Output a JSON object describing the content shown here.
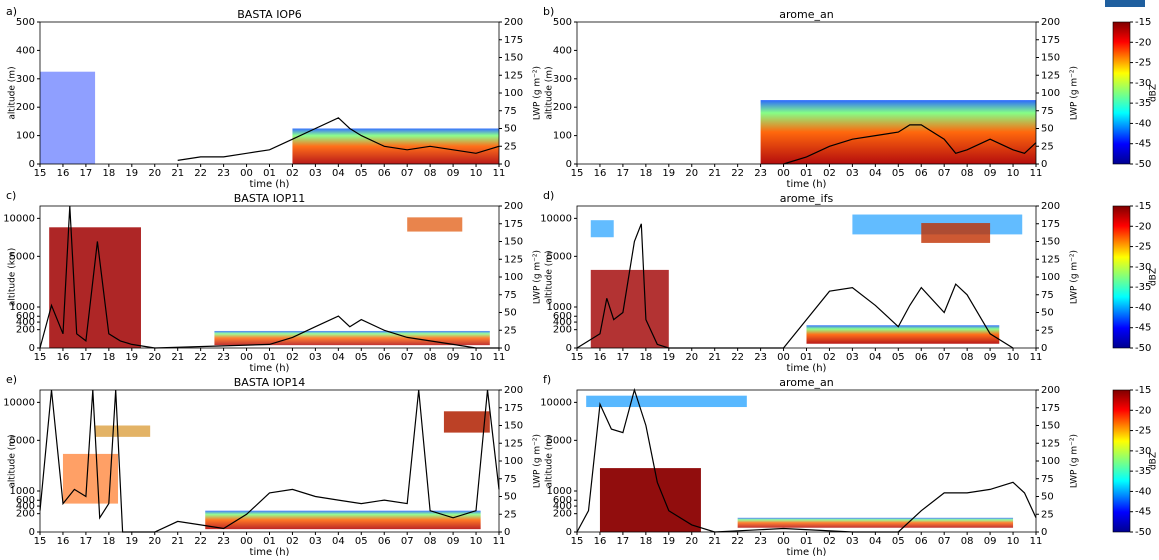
{
  "chart_data": [
    {
      "type": "line",
      "panel_label": "a)",
      "title": "BASTA IOP6",
      "xlabel": "time (h)",
      "ylabel": "altitude (m)",
      "y2label": "LWP (g m⁻²)",
      "yscale": "linear",
      "xlim": [
        15,
        35
      ],
      "xticks": [
        15,
        16,
        17,
        18,
        19,
        20,
        21,
        22,
        23,
        {
          "value": 24,
          "label": "00"
        },
        {
          "value": 25,
          "label": "01"
        },
        {
          "value": 26,
          "label": "02"
        },
        {
          "value": 27,
          "label": "03"
        },
        {
          "value": 28,
          "label": "04"
        },
        {
          "value": 29,
          "label": "05"
        },
        {
          "value": 30,
          "label": "06"
        },
        {
          "value": 31,
          "label": "07"
        },
        {
          "value": 32,
          "label": "08"
        },
        {
          "value": 33,
          "label": "09"
        },
        {
          "value": 34,
          "label": "10"
        },
        {
          "value": 35,
          "label": "11"
        }
      ],
      "ylim": [
        0,
        500
      ],
      "yticks": [
        0,
        100,
        200,
        300,
        400,
        500
      ],
      "y2lim": [
        0,
        200
      ],
      "y2ticks": [
        0,
        25,
        50,
        75,
        100,
        125,
        150,
        175,
        200
      ],
      "x": [
        21,
        22,
        23,
        24,
        25,
        26,
        27,
        28,
        28.5,
        29,
        30,
        31,
        32,
        33,
        34,
        35
      ],
      "series": [
        {
          "color": "#000000",
          "axis": "y2",
          "values": [
            5,
            10,
            10,
            15,
            20,
            35,
            50,
            65,
            50,
            40,
            25,
            20,
            25,
            20,
            15,
            25
          ]
        }
      ]
    },
    {
      "type": "line",
      "panel_label": "b)",
      "title": "arome_an",
      "xlabel": "time (h)",
      "ylabel": "altitude (m)",
      "y2label": "LWP (g m⁻²)",
      "yscale": "linear",
      "xlim": [
        15,
        35
      ],
      "xticks": [
        15,
        16,
        17,
        18,
        19,
        20,
        21,
        22,
        23,
        {
          "value": 24,
          "label": "00"
        },
        {
          "value": 25,
          "label": "01"
        },
        {
          "value": 26,
          "label": "02"
        },
        {
          "value": 27,
          "label": "03"
        },
        {
          "value": 28,
          "label": "04"
        },
        {
          "value": 29,
          "label": "05"
        },
        {
          "value": 30,
          "label": "06"
        },
        {
          "value": 31,
          "label": "07"
        },
        {
          "value": 32,
          "label": "08"
        },
        {
          "value": 33,
          "label": "09"
        },
        {
          "value": 34,
          "label": "10"
        },
        {
          "value": 35,
          "label": "11"
        }
      ],
      "ylim": [
        0,
        500
      ],
      "yticks": [
        0,
        100,
        200,
        300,
        400,
        500
      ],
      "y2lim": [
        0,
        200
      ],
      "y2ticks": [
        0,
        25,
        50,
        75,
        100,
        125,
        150,
        175,
        200
      ],
      "colorbar": {
        "label": "dBZ",
        "lim": [
          -50,
          -15
        ],
        "ticks": [
          -15,
          -20,
          -25,
          -30,
          -35,
          -40,
          -45,
          -50
        ]
      },
      "x": [
        24,
        25,
        26,
        27,
        28,
        29,
        29.5,
        30,
        31,
        31.5,
        32,
        33,
        34,
        34.5,
        35
      ],
      "series": [
        {
          "color": "#000000",
          "axis": "y2",
          "values": [
            0,
            10,
            25,
            35,
            40,
            45,
            55,
            55,
            35,
            15,
            20,
            35,
            20,
            15,
            30
          ]
        }
      ]
    },
    {
      "type": "line",
      "panel_label": "c)",
      "title": "BASTA IOP11",
      "xlabel": "time (h)",
      "ylabel": "altitude (km)",
      "y2label": "LWP (g m⁻²)",
      "yscale": "sqrt",
      "xlim": [
        15,
        35
      ],
      "xticks": [
        15,
        16,
        17,
        18,
        19,
        20,
        21,
        22,
        23,
        {
          "value": 24,
          "label": "00"
        },
        {
          "value": 25,
          "label": "01"
        },
        {
          "value": 26,
          "label": "02"
        },
        {
          "value": 27,
          "label": "03"
        },
        {
          "value": 28,
          "label": "04"
        },
        {
          "value": 29,
          "label": "05"
        },
        {
          "value": 30,
          "label": "06"
        },
        {
          "value": 31,
          "label": "07"
        },
        {
          "value": 32,
          "label": "08"
        },
        {
          "value": 33,
          "label": "09"
        },
        {
          "value": 34,
          "label": "10"
        },
        {
          "value": 35,
          "label": "11"
        }
      ],
      "ylim": [
        0,
        12000
      ],
      "yticks": [
        0,
        200,
        400,
        600,
        1000,
        5000,
        10000
      ],
      "y2lim": [
        0,
        200
      ],
      "y2ticks": [
        0,
        25,
        50,
        75,
        100,
        125,
        150,
        175,
        200
      ],
      "x": [
        15,
        15.5,
        16,
        16.3,
        16.6,
        17,
        17.5,
        18,
        18.5,
        19,
        20,
        25,
        26,
        27,
        28,
        28.5,
        29,
        30,
        31,
        32,
        33,
        34,
        35
      ],
      "series": [
        {
          "color": "#000000",
          "axis": "y2",
          "values": [
            0,
            60,
            20,
            200,
            20,
            10,
            150,
            20,
            10,
            5,
            0,
            5,
            15,
            30,
            45,
            30,
            40,
            25,
            15,
            10,
            5,
            0,
            0
          ]
        }
      ]
    },
    {
      "type": "line",
      "panel_label": "d)",
      "title": "arome_ifs",
      "xlabel": "time (h)",
      "ylabel": "altitude (m)",
      "y2label": "LWP (g m⁻²)",
      "yscale": "sqrt",
      "xlim": [
        15,
        35
      ],
      "xticks": [
        15,
        16,
        17,
        18,
        19,
        20,
        21,
        22,
        23,
        {
          "value": 24,
          "label": "00"
        },
        {
          "value": 25,
          "label": "01"
        },
        {
          "value": 26,
          "label": "02"
        },
        {
          "value": 27,
          "label": "03"
        },
        {
          "value": 28,
          "label": "04"
        },
        {
          "value": 29,
          "label": "05"
        },
        {
          "value": 30,
          "label": "06"
        },
        {
          "value": 31,
          "label": "07"
        },
        {
          "value": 32,
          "label": "08"
        },
        {
          "value": 33,
          "label": "09"
        },
        {
          "value": 34,
          "label": "10"
        },
        {
          "value": 35,
          "label": "11"
        }
      ],
      "ylim": [
        0,
        12000
      ],
      "yticks": [
        0,
        200,
        400,
        600,
        1000,
        5000,
        10000
      ],
      "y2lim": [
        0,
        200
      ],
      "y2ticks": [
        0,
        25,
        50,
        75,
        100,
        125,
        150,
        175,
        200
      ],
      "colorbar": {
        "label": "dBZ",
        "lim": [
          -50,
          -15
        ],
        "ticks": [
          -15,
          -20,
          -25,
          -30,
          -35,
          -40,
          -45,
          -50
        ]
      },
      "x": [
        15,
        16,
        16.3,
        16.6,
        17,
        17.5,
        17.8,
        18,
        18.5,
        19,
        24,
        25,
        26,
        27,
        28,
        29,
        29.5,
        30,
        31,
        31.5,
        32,
        33,
        34
      ],
      "series": [
        {
          "color": "#000000",
          "axis": "y2",
          "values": [
            0,
            20,
            70,
            40,
            50,
            150,
            175,
            40,
            5,
            0,
            0,
            40,
            80,
            85,
            60,
            30,
            60,
            85,
            50,
            90,
            75,
            20,
            0
          ]
        }
      ]
    },
    {
      "type": "line",
      "panel_label": "e)",
      "title": "BASTA IOP14",
      "xlabel": "time (h)",
      "ylabel": "altitude (m)",
      "y2label": "LWP (g m⁻²)",
      "yscale": "sqrt",
      "xlim": [
        15,
        35
      ],
      "xticks": [
        15,
        16,
        17,
        18,
        19,
        20,
        21,
        22,
        23,
        {
          "value": 24,
          "label": "00"
        },
        {
          "value": 25,
          "label": "01"
        },
        {
          "value": 26,
          "label": "02"
        },
        {
          "value": 27,
          "label": "03"
        },
        {
          "value": 28,
          "label": "04"
        },
        {
          "value": 29,
          "label": "05"
        },
        {
          "value": 30,
          "label": "06"
        },
        {
          "value": 31,
          "label": "07"
        },
        {
          "value": 32,
          "label": "08"
        },
        {
          "value": 33,
          "label": "09"
        },
        {
          "value": 34,
          "label": "10"
        },
        {
          "value": 35,
          "label": "11"
        }
      ],
      "ylim": [
        0,
        12000
      ],
      "yticks": [
        0,
        200,
        400,
        600,
        1000,
        5000,
        10000
      ],
      "y2lim": [
        0,
        200
      ],
      "y2ticks": [
        0,
        25,
        50,
        75,
        100,
        125,
        150,
        175,
        200
      ],
      "x": [
        15,
        15.5,
        16,
        16.5,
        17,
        17.3,
        17.6,
        18,
        18.3,
        18.6,
        20,
        21,
        22,
        23,
        24,
        25,
        26,
        27,
        28,
        29,
        30,
        31,
        31.5,
        32,
        33,
        34,
        34.5,
        35
      ],
      "series": [
        {
          "color": "#000000",
          "axis": "y2",
          "values": [
            30,
            200,
            40,
            60,
            50,
            200,
            20,
            40,
            200,
            0,
            0,
            15,
            10,
            5,
            25,
            55,
            60,
            50,
            45,
            40,
            45,
            40,
            200,
            30,
            20,
            30,
            200,
            60
          ]
        }
      ]
    },
    {
      "type": "line",
      "panel_label": "f)",
      "title": "arome_an",
      "xlabel": "time (h)",
      "ylabel": "altitude (m)",
      "y2label": "LWP (g m⁻²)",
      "yscale": "sqrt",
      "xlim": [
        15,
        35
      ],
      "xticks": [
        15,
        16,
        17,
        18,
        19,
        20,
        21,
        22,
        23,
        {
          "value": 24,
          "label": "00"
        },
        {
          "value": 25,
          "label": "01"
        },
        {
          "value": 26,
          "label": "02"
        },
        {
          "value": 27,
          "label": "03"
        },
        {
          "value": 28,
          "label": "04"
        },
        {
          "value": 29,
          "label": "05"
        },
        {
          "value": 30,
          "label": "06"
        },
        {
          "value": 31,
          "label": "07"
        },
        {
          "value": 32,
          "label": "08"
        },
        {
          "value": 33,
          "label": "09"
        },
        {
          "value": 34,
          "label": "10"
        },
        {
          "value": 35,
          "label": "11"
        }
      ],
      "ylim": [
        0,
        12000
      ],
      "yticks": [
        0,
        200,
        400,
        600,
        1000,
        5000,
        10000
      ],
      "y2lim": [
        0,
        200
      ],
      "y2ticks": [
        0,
        25,
        50,
        75,
        100,
        125,
        150,
        175,
        200
      ],
      "colorbar": {
        "label": "dBZ",
        "lim": [
          -50,
          -15
        ],
        "ticks": [
          -15,
          -20,
          -25,
          -30,
          -35,
          -40,
          -45,
          -50
        ]
      },
      "x": [
        15,
        15.5,
        16,
        16.5,
        17,
        17.5,
        18,
        18.5,
        19,
        20,
        21,
        24,
        27,
        29,
        30,
        31,
        32,
        33,
        34,
        34.5,
        35
      ],
      "series": [
        {
          "color": "#000000",
          "axis": "y2",
          "values": [
            0,
            30,
            180,
            145,
            140,
            200,
            150,
            70,
            30,
            10,
            0,
            5,
            0,
            0,
            30,
            55,
            55,
            60,
            70,
            55,
            20
          ]
        }
      ]
    }
  ]
}
